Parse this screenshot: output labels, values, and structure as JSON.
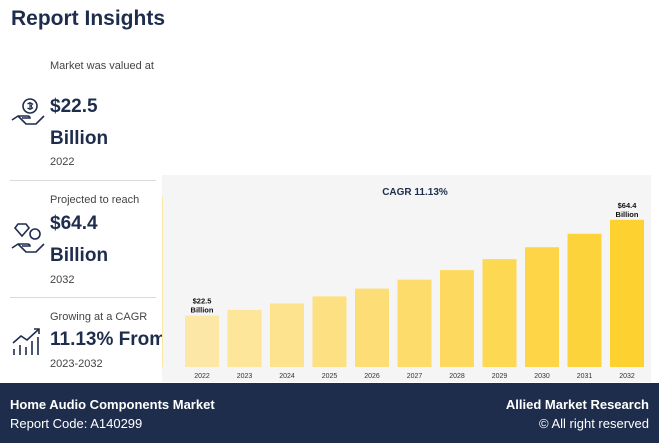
{
  "report": {
    "title": "Report Insights"
  },
  "stats": [
    {
      "label": "Market was valued at",
      "value": "$22.5",
      "unit": "Billion",
      "year": "2022",
      "icon": "money-hand-icon"
    },
    {
      "label": "Projected to reach",
      "value": "$64.4",
      "unit": "Billion",
      "year": "2032",
      "icon": "diamond-hand-icon"
    },
    {
      "label": "Growing at a CAGR",
      "value": "11.13% From",
      "year": "2023-2032",
      "icon": "growth-chart-icon"
    }
  ],
  "chart_data": {
    "type": "bar",
    "title": "CAGR 11.13%",
    "categories": [
      "2022",
      "2023",
      "2024",
      "2025",
      "2026",
      "2027",
      "2028",
      "2029",
      "2030",
      "2031",
      "2032"
    ],
    "values": [
      22.5,
      25.0,
      27.8,
      30.9,
      34.3,
      38.2,
      42.4,
      47.2,
      52.4,
      58.3,
      64.4
    ],
    "data_labels": [
      {
        "category": "2022",
        "line1": "$22.5",
        "line2": "Billion"
      },
      {
        "category": "2032",
        "line1": "$64.4",
        "line2": "Billion"
      }
    ],
    "ylim": [
      0,
      70
    ],
    "grid": false,
    "colors": {
      "start": "#fde7a6",
      "end": "#fdd12f"
    }
  },
  "footer": {
    "market_name": "Home Audio Components Market",
    "report_code": "Report Code: A140299",
    "brand": "Allied Market Research",
    "rights": "© All right reserved"
  }
}
